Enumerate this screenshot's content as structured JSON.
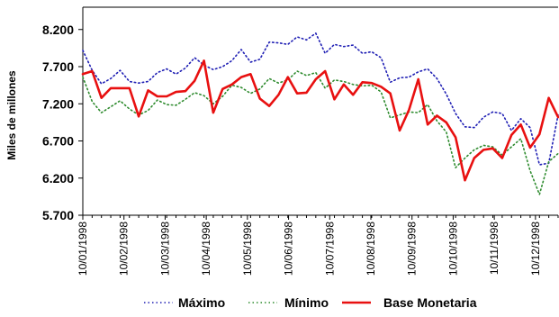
{
  "chart_data": {
    "type": "line",
    "ylabel": "Miles de millones",
    "xlabel": "",
    "ylim": [
      5700,
      8500
    ],
    "y_ticks": [
      "8.200",
      "7.700",
      "7.200",
      "6.700",
      "6.200",
      "5.700"
    ],
    "y_tick_values": [
      8200,
      7700,
      7200,
      6700,
      6200,
      5700
    ],
    "x_tick_labels": [
      "10/01/1998",
      "10/02/1998",
      "10/03/1998",
      "10/04/1998",
      "10/05/1998",
      "10/06/1998",
      "10/07/1998",
      "10/08/1998",
      "10/09/1998",
      "10/10/1998",
      "10/11/1998",
      "10/12/1998"
    ],
    "grid": false,
    "legend_position": "bottom",
    "series": [
      {
        "name": "Máximo",
        "color": "#1f1fb4",
        "style": "dotted",
        "values": [
          7920,
          7650,
          7470,
          7540,
          7650,
          7500,
          7480,
          7500,
          7620,
          7670,
          7600,
          7680,
          7820,
          7720,
          7660,
          7700,
          7780,
          7930,
          7760,
          7800,
          8030,
          8020,
          8000,
          8100,
          8060,
          8150,
          7880,
          8000,
          7970,
          7990,
          7880,
          7900,
          7820,
          7490,
          7550,
          7560,
          7630,
          7670,
          7540,
          7330,
          7070,
          6890,
          6880,
          7020,
          7090,
          7070,
          6840,
          7000,
          6880,
          6380,
          6400,
          7050
        ]
      },
      {
        "name": "Mínimo",
        "color": "#2e8b2e",
        "style": "dotted",
        "values": [
          7560,
          7230,
          7080,
          7160,
          7240,
          7130,
          7050,
          7110,
          7250,
          7190,
          7180,
          7260,
          7350,
          7310,
          7200,
          7300,
          7450,
          7420,
          7340,
          7400,
          7540,
          7480,
          7520,
          7640,
          7580,
          7620,
          7410,
          7520,
          7500,
          7460,
          7440,
          7450,
          7360,
          7010,
          7050,
          7090,
          7080,
          7190,
          6970,
          6820,
          6340,
          6470,
          6580,
          6640,
          6620,
          6510,
          6620,
          6730,
          6300,
          5980,
          6420,
          6530
        ]
      },
      {
        "name": "Base Monetaria",
        "color": "#e81010",
        "style": "solid",
        "values": [
          7600,
          7640,
          7280,
          7410,
          7410,
          7410,
          7030,
          7380,
          7300,
          7300,
          7360,
          7370,
          7510,
          7780,
          7080,
          7400,
          7460,
          7560,
          7600,
          7270,
          7170,
          7320,
          7560,
          7340,
          7350,
          7530,
          7640,
          7260,
          7460,
          7320,
          7490,
          7480,
          7430,
          7340,
          6840,
          7120,
          7530,
          6920,
          7040,
          6950,
          6750,
          6170,
          6470,
          6580,
          6600,
          6470,
          6780,
          6920,
          6610,
          6790,
          7280,
          7020
        ]
      }
    ]
  }
}
